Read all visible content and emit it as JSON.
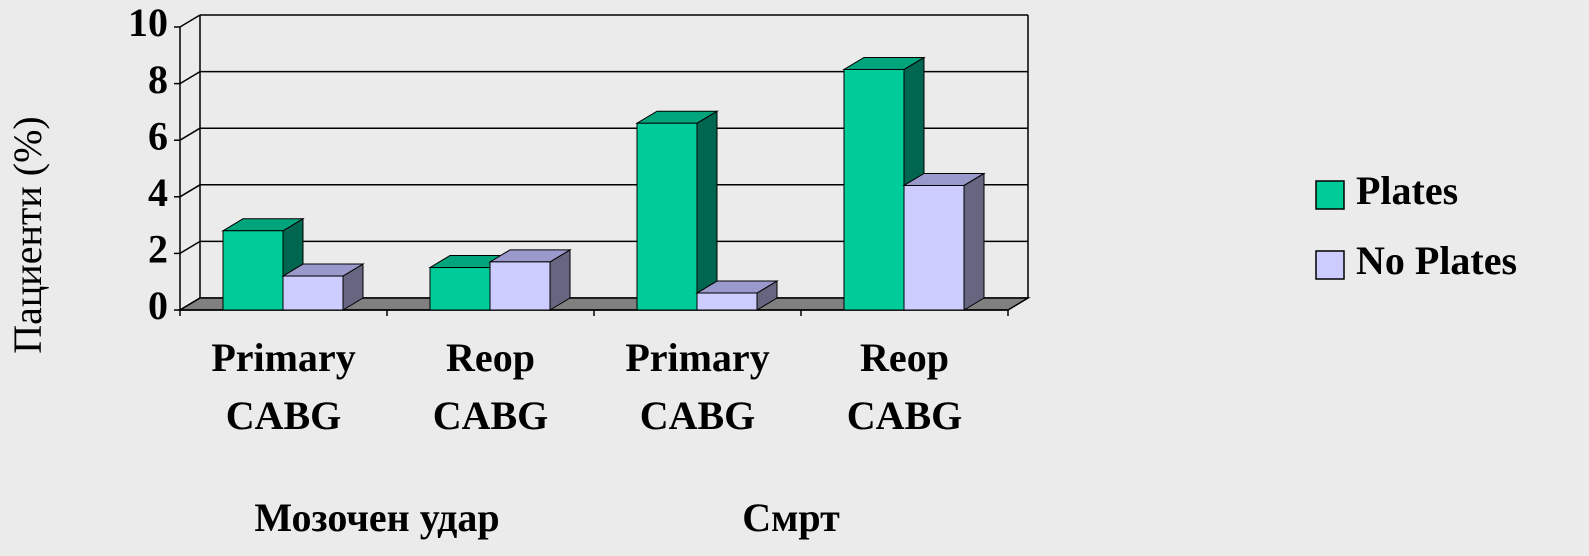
{
  "chart_data": {
    "type": "bar3d",
    "ylabel": "Пациенти (%)",
    "categories": [
      "Primary CABG",
      "Reop CABG",
      "Primary CABG",
      "Reop CABG"
    ],
    "groups": [
      {
        "label": "Мозочен удар",
        "span": [
          0,
          1
        ]
      },
      {
        "label": "Смрт",
        "span": [
          2,
          3
        ]
      }
    ],
    "series": [
      {
        "name": "Plates",
        "color": "#00cc99",
        "side": "#006650",
        "top": "#00a57c",
        "values": [
          2.8,
          1.5,
          6.6,
          8.5
        ]
      },
      {
        "name": "No Plates",
        "color": "#ccccff",
        "side": "#666680",
        "top": "#9999cc",
        "values": [
          1.2,
          1.7,
          0.6,
          4.4
        ]
      }
    ],
    "ylim": [
      0,
      10
    ],
    "yticks": [
      0,
      2,
      4,
      6,
      8,
      10
    ],
    "grid": true,
    "legend": "right"
  }
}
